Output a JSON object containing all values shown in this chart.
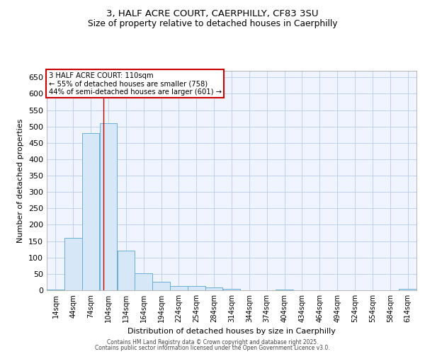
{
  "title_line1": "3, HALF ACRE COURT, CAERPHILLY, CF83 3SU",
  "title_line2": "Size of property relative to detached houses in Caerphilly",
  "xlabel": "Distribution of detached houses by size in Caerphilly",
  "ylabel": "Number of detached properties",
  "bar_color": "#d6e8f7",
  "bar_edge_color": "#6aaed6",
  "background_color": "#ffffff",
  "plot_bg_color": "#f0f4ff",
  "grid_color": "#b8cce8",
  "annotation_text": "3 HALF ACRE COURT: 110sqm\n← 55% of detached houses are smaller (758)\n44% of semi-detached houses are larger (601) →",
  "annotation_box_color": "#cc0000",
  "red_line_x": 110,
  "red_line_color": "#cc0000",
  "bin_starts": [
    14,
    44,
    74,
    104,
    134,
    164,
    194,
    224,
    254,
    284,
    314,
    344,
    374,
    404,
    434,
    464,
    494,
    524,
    554,
    584,
    614
  ],
  "bin_width": 30,
  "bar_heights": [
    3,
    160,
    480,
    510,
    122,
    52,
    25,
    12,
    12,
    8,
    5,
    0,
    0,
    3,
    0,
    0,
    0,
    0,
    0,
    0,
    5
  ],
  "ylim": [
    0,
    670
  ],
  "yticks": [
    0,
    50,
    100,
    150,
    200,
    250,
    300,
    350,
    400,
    450,
    500,
    550,
    600,
    650
  ],
  "footer_line1": "Contains HM Land Registry data © Crown copyright and database right 2025.",
  "footer_line2": "Contains public sector information licensed under the Open Government Licence v3.0."
}
